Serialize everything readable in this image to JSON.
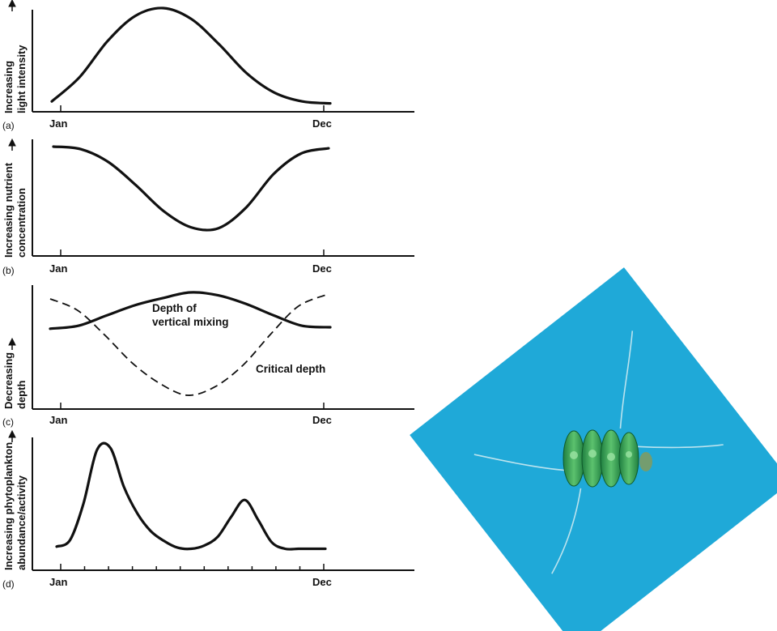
{
  "chart_data": [
    {
      "type": "line",
      "panel": "(a)",
      "ylabel_lines": [
        "Increasing",
        "light intensity"
      ],
      "x_start_label": "Jan",
      "x_end_label": "Dec",
      "x": [
        0,
        0.1,
        0.2,
        0.3,
        0.4,
        0.5,
        0.6,
        0.7,
        0.8,
        0.9,
        1.0
      ],
      "series": [
        {
          "values": [
            0.04,
            0.29,
            0.66,
            0.92,
            1.0,
            0.89,
            0.63,
            0.33,
            0.13,
            0.04,
            0.02
          ]
        }
      ]
    },
    {
      "type": "line",
      "panel": "(b)",
      "ylabel_lines": [
        "Increasing nutrient",
        "concentration"
      ],
      "x_start_label": "Jan",
      "x_end_label": "Dec",
      "x": [
        0,
        0.1,
        0.2,
        0.3,
        0.4,
        0.5,
        0.6,
        0.7,
        0.8,
        0.9,
        1.0
      ],
      "series": [
        {
          "values": [
            1.0,
            0.97,
            0.82,
            0.55,
            0.25,
            0.06,
            0.05,
            0.29,
            0.68,
            0.92,
            0.98
          ]
        }
      ]
    },
    {
      "type": "line",
      "panel": "(c)",
      "ylabel_lines": [
        "Decreasing",
        "depth"
      ],
      "x_start_label": "Jan",
      "x_end_label": "Dec",
      "x": [
        0,
        0.1,
        0.2,
        0.3,
        0.4,
        0.5,
        0.6,
        0.7,
        0.8,
        0.9,
        1.0
      ],
      "series": [
        {
          "name": "Depth of vertical mixing",
          "style": "solid",
          "values": [
            0.75,
            0.77,
            0.84,
            0.91,
            0.96,
            1.0,
            0.98,
            0.92,
            0.84,
            0.77,
            0.76
          ]
        },
        {
          "name": "Critical depth",
          "style": "dashed",
          "values": [
            1.0,
            0.88,
            0.62,
            0.33,
            0.12,
            0.0,
            0.09,
            0.31,
            0.63,
            0.92,
            1.04
          ]
        }
      ],
      "annotations": [
        {
          "lines": [
            "Depth of",
            "vertical mixing"
          ]
        },
        {
          "lines": [
            "Critical depth"
          ]
        }
      ]
    },
    {
      "type": "line",
      "panel": "(d)",
      "ylabel_lines": [
        "Increasing phytoplankton",
        "abundance/activity"
      ],
      "x_start_label": "Jan",
      "x_end_label": "Dec",
      "minor_ticks": 11,
      "x": [
        0,
        0.05,
        0.1,
        0.15,
        0.2,
        0.25,
        0.3,
        0.35,
        0.4,
        0.45,
        0.5,
        0.55,
        0.6,
        0.65,
        0.7,
        0.75,
        0.8,
        0.85,
        0.9,
        0.95,
        1.0
      ],
      "series": [
        {
          "values": [
            0.06,
            0.12,
            0.45,
            0.93,
            0.95,
            0.6,
            0.36,
            0.2,
            0.11,
            0.05,
            0.04,
            0.07,
            0.15,
            0.33,
            0.48,
            0.3,
            0.1,
            0.04,
            0.04,
            0.04,
            0.04
          ]
        }
      ]
    }
  ],
  "photo": {
    "background_color": "#1fa9d8",
    "cell_color": "#2f9a52",
    "cell_highlight": "#7fd48a",
    "spine_color": "#d8eef2"
  }
}
